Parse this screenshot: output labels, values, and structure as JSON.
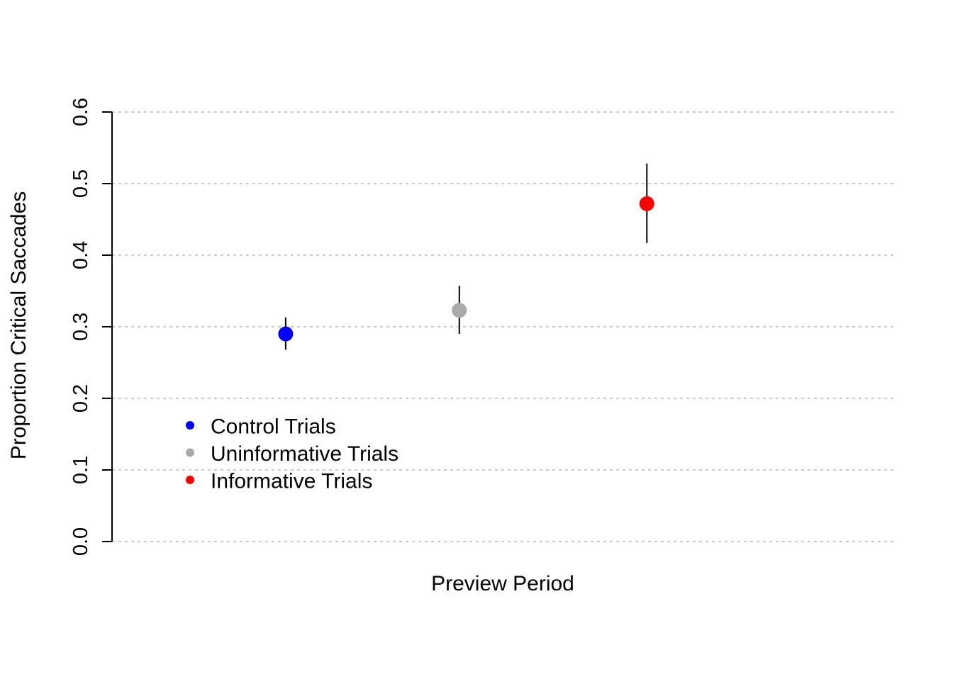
{
  "chart_data": {
    "type": "scatter",
    "title": "",
    "xlabel": "Preview Period",
    "ylabel": "Proportion Critical Saccades",
    "ylim": [
      0,
      0.6
    ],
    "y_ticks": [
      "0.0",
      "0.1",
      "0.2",
      "0.3",
      "0.4",
      "0.5",
      "0.6"
    ],
    "y_tick_values": [
      0,
      0.1,
      0.2,
      0.3,
      0.4,
      0.5,
      0.6
    ],
    "grid": "horizontal-dashed",
    "legend_position": "bottom-left",
    "series": [
      {
        "name": "Control Trials",
        "color": "#0000ff",
        "x": 1,
        "y": 0.29,
        "err_low": 0.268,
        "err_high": 0.313
      },
      {
        "name": "Uninformative Trials",
        "color": "#aaaaaa",
        "x": 2,
        "y": 0.323,
        "err_low": 0.29,
        "err_high": 0.357
      },
      {
        "name": "Informative Trials",
        "color": "#ff0000",
        "x": 3.08,
        "y": 0.472,
        "err_low": 0.417,
        "err_high": 0.528
      }
    ],
    "xlim": [
      0,
      4.5
    ]
  }
}
